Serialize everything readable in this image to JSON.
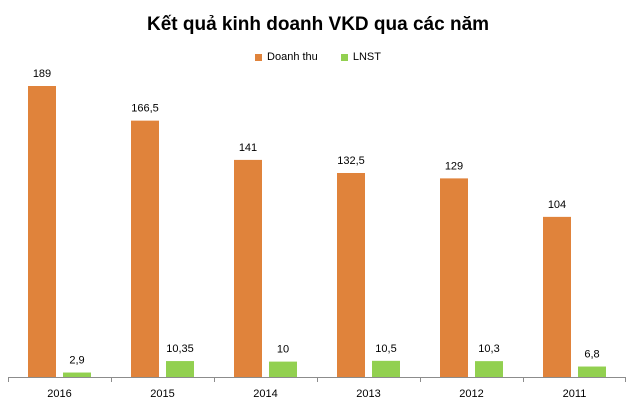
{
  "chart_data": {
    "type": "bar",
    "title": "Kết quả kinh doanh VKD qua các năm",
    "categories": [
      "2016",
      "2015",
      "2014",
      "2013",
      "2012",
      "2011"
    ],
    "series": [
      {
        "name": "Doanh thu",
        "color": "#E0833B",
        "values": [
          189,
          166.5,
          141,
          132.5,
          129,
          104
        ],
        "labels": [
          "189",
          "166,5",
          "141",
          "132,5",
          "129",
          "104"
        ]
      },
      {
        "name": "LNST",
        "color": "#92D050",
        "values": [
          2.9,
          10.35,
          10,
          10.5,
          10.3,
          6.8
        ],
        "labels": [
          "2,9",
          "10,35",
          "10",
          "10,5",
          "10,3",
          "6,8"
        ]
      }
    ],
    "ylim": [
      0,
      189
    ],
    "xlabel": "",
    "ylabel": "",
    "grid": false,
    "legend_position": "top-center"
  }
}
